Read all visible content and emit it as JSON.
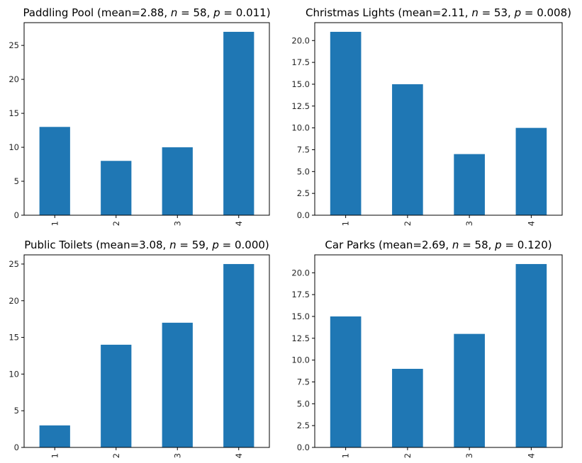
{
  "bar_color": "#1f77b4",
  "chart_data": [
    {
      "type": "bar",
      "title_name": "Paddling Pool",
      "title_stats": "(mean=2.88,",
      "title_n": "58,",
      "title_p": "0.011)",
      "categories": [
        "1",
        "2",
        "3",
        "4"
      ],
      "values": [
        13,
        8,
        10,
        27
      ],
      "ylim": [
        0,
        28.35
      ],
      "yticks": [
        0,
        5,
        10,
        15,
        20,
        25
      ],
      "ytick_labels": [
        "0",
        "5",
        "10",
        "15",
        "20",
        "25"
      ],
      "xlabel": "",
      "ylabel": "",
      "grid": false
    },
    {
      "type": "bar",
      "title_name": "Christmas Lights",
      "title_stats": "(mean=2.11,",
      "title_n": "53,",
      "title_p": "0.008)",
      "categories": [
        "1",
        "2",
        "3",
        "4"
      ],
      "values": [
        21,
        15,
        7,
        10
      ],
      "ylim": [
        0,
        22.05
      ],
      "yticks": [
        0,
        2.5,
        5,
        7.5,
        10,
        12.5,
        15,
        17.5,
        20
      ],
      "ytick_labels": [
        "0.0",
        "2.5",
        "5.0",
        "7.5",
        "10.0",
        "12.5",
        "15.0",
        "17.5",
        "20.0"
      ],
      "xlabel": "",
      "ylabel": "",
      "grid": false
    },
    {
      "type": "bar",
      "title_name": "Public Toilets",
      "title_stats": "(mean=3.08,",
      "title_n": "59,",
      "title_p": "0.000)",
      "categories": [
        "1",
        "2",
        "3",
        "4"
      ],
      "values": [
        3,
        14,
        17,
        25
      ],
      "ylim": [
        0,
        26.25
      ],
      "yticks": [
        0,
        5,
        10,
        15,
        20,
        25
      ],
      "ytick_labels": [
        "0",
        "5",
        "10",
        "15",
        "20",
        "25"
      ],
      "xlabel": "",
      "ylabel": "",
      "grid": false
    },
    {
      "type": "bar",
      "title_name": "Car Parks",
      "title_stats": "(mean=2.69,",
      "title_n": "58,",
      "title_p": "0.120)",
      "categories": [
        "1",
        "2",
        "3",
        "4"
      ],
      "values": [
        15,
        9,
        13,
        21
      ],
      "ylim": [
        0,
        22.05
      ],
      "yticks": [
        0,
        2.5,
        5,
        7.5,
        10,
        12.5,
        15,
        17.5,
        20
      ],
      "ytick_labels": [
        "0.0",
        "2.5",
        "5.0",
        "7.5",
        "10.0",
        "12.5",
        "15.0",
        "17.5",
        "20.0"
      ],
      "xlabel": "",
      "ylabel": "",
      "grid": false
    }
  ]
}
